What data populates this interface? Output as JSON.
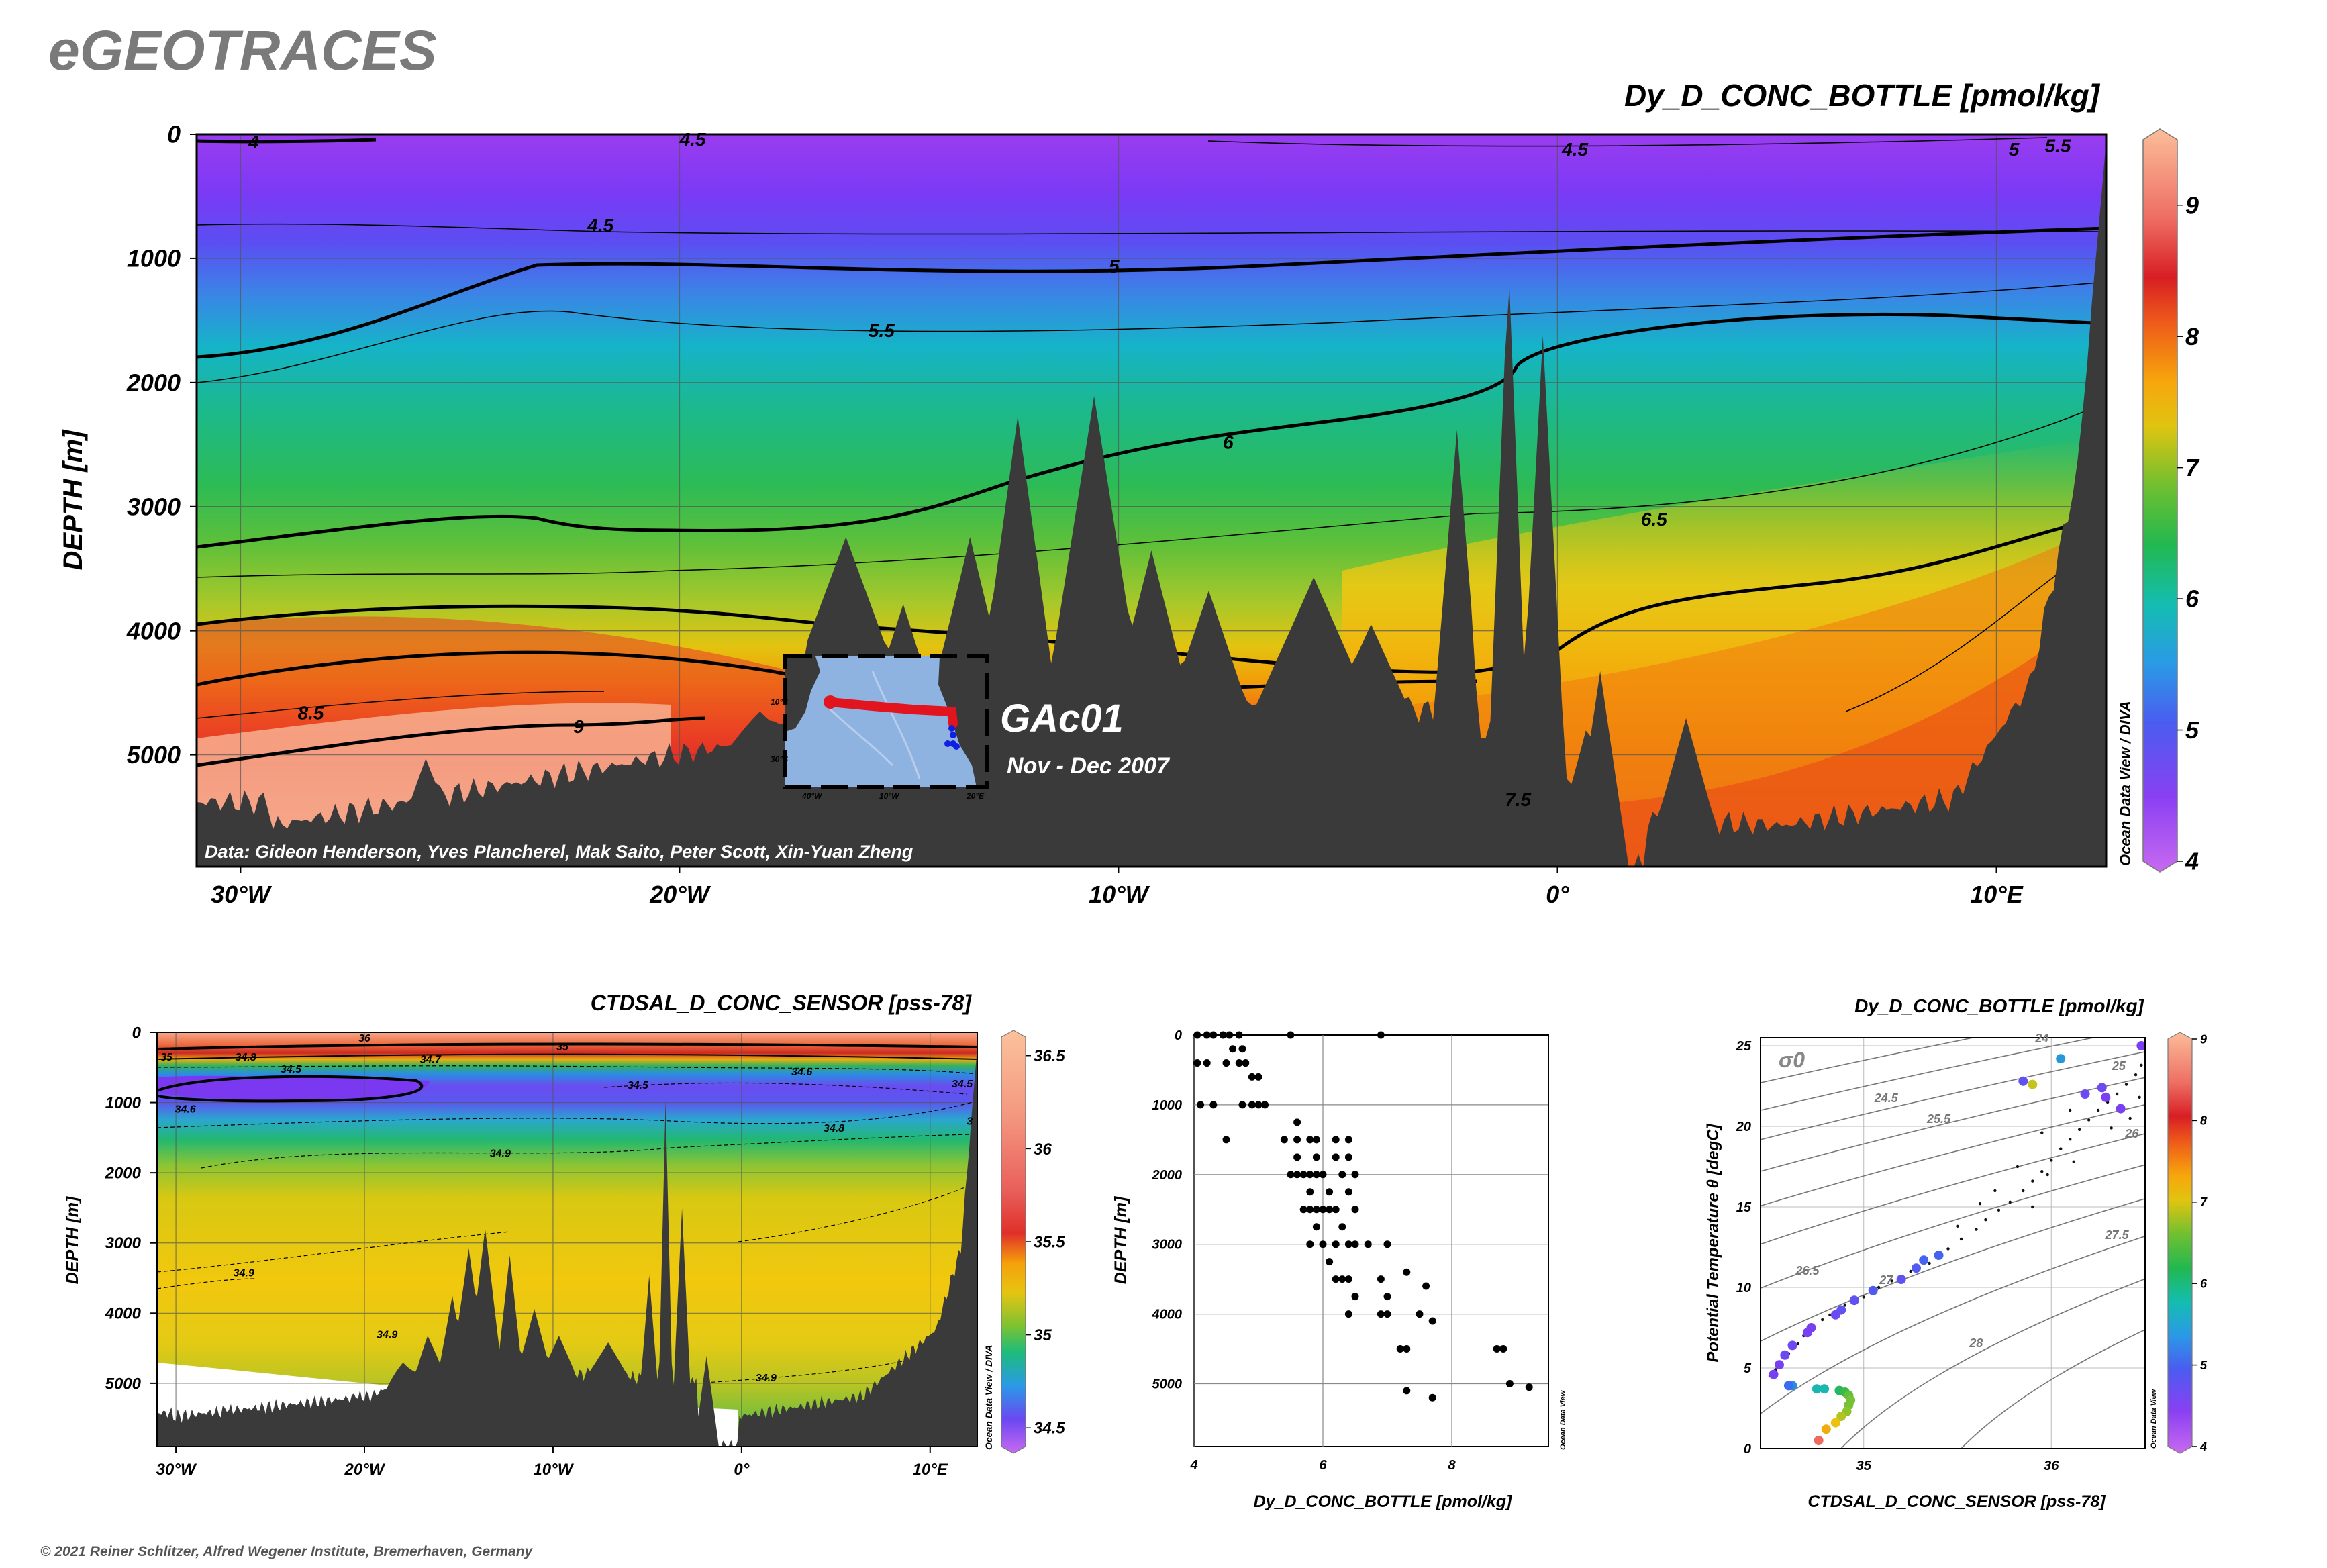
{
  "header": {
    "brand": "eGEOTRACES",
    "copyright": "© 2021 Reiner Schlitzer, Alfred Wegener Institute, Bremerhaven, Germany"
  },
  "colors": {
    "land": "#3a3a3a",
    "frame": "#000000",
    "brand_gray": "#7a7a7a"
  },
  "chart_data": [
    {
      "id": "main-section",
      "type": "heatmap",
      "title": "Dy_D_CONC_BOTTLE [pmol/kg]",
      "ylabel": "DEPTH [m]",
      "xlim": [
        -31,
        12.5
      ],
      "ylim": [
        5900,
        0
      ],
      "xticks": [
        {
          "v": -30,
          "label": "30°W"
        },
        {
          "v": -20,
          "label": "20°W"
        },
        {
          "v": -10,
          "label": "10°W"
        },
        {
          "v": 0,
          "label": "0°"
        },
        {
          "v": 10,
          "label": "10°E"
        }
      ],
      "yticks": [
        {
          "v": 0,
          "label": "0"
        },
        {
          "v": 1000,
          "label": "1000"
        },
        {
          "v": 2000,
          "label": "2000"
        },
        {
          "v": 3000,
          "label": "3000"
        },
        {
          "v": 4000,
          "label": "4000"
        },
        {
          "v": 5000,
          "label": "5000"
        }
      ],
      "colorbar": {
        "range": [
          4,
          9.5
        ],
        "ticks": [
          4,
          5,
          6,
          7,
          8,
          9
        ],
        "labels": [
          "4",
          "5",
          "6",
          "7",
          "8",
          "9"
        ],
        "credit": "Ocean Data View / DIVA"
      },
      "contour_labels": [
        {
          "text": "4",
          "x": -29.7,
          "y": 60
        },
        {
          "text": "4.5",
          "x": -19.7,
          "y": 40
        },
        {
          "text": "4.5",
          "x": -21.8,
          "y": 730
        },
        {
          "text": "4.5",
          "x": 0.4,
          "y": 120
        },
        {
          "text": "5",
          "x": 10.4,
          "y": 120
        },
        {
          "text": "5.5",
          "x": 11.4,
          "y": 90
        },
        {
          "text": "5",
          "x": -10.1,
          "y": 1060
        },
        {
          "text": "5.5",
          "x": -15.4,
          "y": 1580
        },
        {
          "text": "6",
          "x": -7.5,
          "y": 2480
        },
        {
          "text": "6.5",
          "x": 2.2,
          "y": 3100
        },
        {
          "text": "8.5",
          "x": -28.4,
          "y": 4660
        },
        {
          "text": "9",
          "x": -22.3,
          "y": 4770
        },
        {
          "text": "7.5",
          "x": -0.9,
          "y": 5360
        }
      ],
      "credit": "Data: Gideon Henderson, Yves Plancherel, Mak Saito, Peter Scott, Xin-Yuan Zheng",
      "inset": {
        "title": "GAc01",
        "subtitle": "Nov - Dec 2007",
        "lat_labels": [
          "10°S",
          "30°S"
        ],
        "lon_labels": [
          "40°W",
          "10°W",
          "20°E"
        ]
      }
    },
    {
      "id": "salinity-section",
      "type": "heatmap",
      "title": "CTDSAL_D_CONC_SENSOR [pss-78]",
      "ylabel": "DEPTH [m]",
      "xlim": [
        -31,
        12.5
      ],
      "ylim": [
        5900,
        0
      ],
      "xticks": [
        {
          "v": -30,
          "label": "30°W"
        },
        {
          "v": -20,
          "label": "20°W"
        },
        {
          "v": -10,
          "label": "10°W"
        },
        {
          "v": 0,
          "label": "0°"
        },
        {
          "v": 10,
          "label": "10°E"
        }
      ],
      "yticks": [
        {
          "v": 0,
          "label": "0"
        },
        {
          "v": 1000,
          "label": "1000"
        },
        {
          "v": 2000,
          "label": "2000"
        },
        {
          "v": 3000,
          "label": "3000"
        },
        {
          "v": 4000,
          "label": "4000"
        },
        {
          "v": 5000,
          "label": "5000"
        }
      ],
      "colorbar": {
        "range": [
          34.4,
          36.6
        ],
        "ticks": [
          34.5,
          35,
          35.5,
          36,
          36.5
        ],
        "labels": [
          "34.5",
          "35",
          "35.5",
          "36",
          "36.5"
        ],
        "credit": "Ocean Data View / DIVA"
      },
      "contour_labels": [
        {
          "text": "36",
          "x": -20,
          "y": 80
        },
        {
          "text": "35",
          "x": -30.5,
          "y": 350
        },
        {
          "text": "34.8",
          "x": -26.3,
          "y": 350
        },
        {
          "text": "34.7",
          "x": -16.5,
          "y": 380
        },
        {
          "text": "35",
          "x": -9.5,
          "y": 200
        },
        {
          "text": "34.5",
          "x": -23.9,
          "y": 520
        },
        {
          "text": "34.5",
          "x": -5.5,
          "y": 750
        },
        {
          "text": "34.6",
          "x": 3.2,
          "y": 560
        },
        {
          "text": "34.5",
          "x": 11.7,
          "y": 730
        },
        {
          "text": "34.6",
          "x": -29.5,
          "y": 1090
        },
        {
          "text": "34.8",
          "x": 4.9,
          "y": 1360
        },
        {
          "text": "34.9",
          "x": -12.8,
          "y": 1720
        },
        {
          "text": "34.9",
          "x": -26.4,
          "y": 3420
        },
        {
          "text": "34.9",
          "x": 1.3,
          "y": 4920
        },
        {
          "text": "34.9",
          "x": -18.8,
          "y": 4300
        },
        {
          "text": "3",
          "x": 12.1,
          "y": 1260
        }
      ]
    },
    {
      "id": "profile-scatter",
      "type": "scatter",
      "xlabel": "Dy_D_CONC_BOTTLE [pmol/kg]",
      "ylabel": "DEPTH [m]",
      "xlim": [
        4,
        9.5
      ],
      "ylim": [
        5900,
        0
      ],
      "xticks": [
        {
          "v": 4,
          "label": "4"
        },
        {
          "v": 6,
          "label": "6"
        },
        {
          "v": 8,
          "label": "8"
        }
      ],
      "yticks": [
        {
          "v": 0,
          "label": "0"
        },
        {
          "v": 1000,
          "label": "1000"
        },
        {
          "v": 2000,
          "label": "2000"
        },
        {
          "v": 3000,
          "label": "3000"
        },
        {
          "v": 4000,
          "label": "4000"
        },
        {
          "v": 5000,
          "label": "5000"
        }
      ],
      "credit": "Ocean Data View",
      "points": [
        [
          4.05,
          0
        ],
        [
          4.2,
          0
        ],
        [
          4.3,
          0
        ],
        [
          4.45,
          0
        ],
        [
          4.55,
          0
        ],
        [
          4.7,
          0
        ],
        [
          5.5,
          0
        ],
        [
          6.9,
          0
        ],
        [
          4.05,
          400
        ],
        [
          4.2,
          400
        ],
        [
          4.5,
          400
        ],
        [
          4.7,
          400
        ],
        [
          4.6,
          200
        ],
        [
          4.75,
          200
        ],
        [
          4.8,
          400
        ],
        [
          4.9,
          600
        ],
        [
          5.0,
          600
        ],
        [
          4.1,
          1000
        ],
        [
          4.3,
          1000
        ],
        [
          4.75,
          1000
        ],
        [
          4.9,
          1000
        ],
        [
          5.0,
          1000
        ],
        [
          5.1,
          1000
        ],
        [
          5.6,
          1250
        ],
        [
          4.5,
          1500
        ],
        [
          5.4,
          1500
        ],
        [
          5.6,
          1500
        ],
        [
          5.8,
          1500
        ],
        [
          5.9,
          1500
        ],
        [
          6.2,
          1500
        ],
        [
          6.4,
          1500
        ],
        [
          5.6,
          1750
        ],
        [
          5.9,
          1750
        ],
        [
          6.2,
          1750
        ],
        [
          6.4,
          1750
        ],
        [
          5.5,
          2000
        ],
        [
          5.6,
          2000
        ],
        [
          5.7,
          2000
        ],
        [
          5.8,
          2000
        ],
        [
          5.9,
          2000
        ],
        [
          6.0,
          2000
        ],
        [
          6.3,
          2000
        ],
        [
          6.5,
          2000
        ],
        [
          5.8,
          2250
        ],
        [
          6.1,
          2250
        ],
        [
          6.4,
          2250
        ],
        [
          5.7,
          2500
        ],
        [
          5.8,
          2500
        ],
        [
          5.9,
          2500
        ],
        [
          6.0,
          2500
        ],
        [
          6.1,
          2500
        ],
        [
          6.2,
          2500
        ],
        [
          6.5,
          2500
        ],
        [
          5.9,
          2750
        ],
        [
          6.3,
          2750
        ],
        [
          5.8,
          3000
        ],
        [
          6.0,
          3000
        ],
        [
          6.2,
          3000
        ],
        [
          6.4,
          3000
        ],
        [
          6.5,
          3000
        ],
        [
          6.7,
          3000
        ],
        [
          7.0,
          3000
        ],
        [
          6.1,
          3250
        ],
        [
          6.2,
          3500
        ],
        [
          6.3,
          3500
        ],
        [
          6.4,
          3500
        ],
        [
          6.9,
          3500
        ],
        [
          7.3,
          3400
        ],
        [
          7.6,
          3600
        ],
        [
          6.5,
          3750
        ],
        [
          7.0,
          3750
        ],
        [
          6.4,
          4000
        ],
        [
          6.9,
          4000
        ],
        [
          7.0,
          4000
        ],
        [
          7.5,
          4000
        ],
        [
          7.7,
          4100
        ],
        [
          7.2,
          4500
        ],
        [
          7.3,
          4500
        ],
        [
          8.7,
          4500
        ],
        [
          8.8,
          4500
        ],
        [
          8.9,
          5000
        ],
        [
          9.2,
          5050
        ],
        [
          7.3,
          5100
        ],
        [
          7.7,
          5200
        ]
      ]
    },
    {
      "id": "ts-scatter",
      "type": "scatter",
      "title": "Dy_D_CONC_BOTTLE [pmol/kg]",
      "xlabel": "CTDSAL_D_CONC_SENSOR [pss-78]",
      "ylabel": "Potential Temperature θ [degC]",
      "xlim": [
        34.45,
        36.5
      ],
      "ylim": [
        0,
        25.5
      ],
      "xticks": [
        {
          "v": 35,
          "label": "35"
        },
        {
          "v": 36,
          "label": "36"
        }
      ],
      "yticks": [
        {
          "v": 0,
          "label": "0"
        },
        {
          "v": 5,
          "label": "5"
        },
        {
          "v": 10,
          "label": "10"
        },
        {
          "v": 15,
          "label": "15"
        },
        {
          "v": 20,
          "label": "20"
        },
        {
          "v": 25,
          "label": "25"
        }
      ],
      "sigma_label": "σ0",
      "isopycnal_labels": [
        {
          "text": "24",
          "x": 35.95,
          "y": 25.2
        },
        {
          "text": "24.5",
          "x": 35.12,
          "y": 21.5
        },
        {
          "text": "25",
          "x": 36.36,
          "y": 23.5
        },
        {
          "text": "25.5",
          "x": 35.4,
          "y": 20.2
        },
        {
          "text": "26",
          "x": 36.43,
          "y": 19.3
        },
        {
          "text": "26.5",
          "x": 34.7,
          "y": 10.8
        },
        {
          "text": "27",
          "x": 35.12,
          "y": 10.2
        },
        {
          "text": "27.5",
          "x": 36.35,
          "y": 13.0
        },
        {
          "text": "28",
          "x": 35.6,
          "y": 6.3
        }
      ],
      "colorbar": {
        "range": [
          4,
          9
        ],
        "ticks": [
          4,
          5,
          6,
          7,
          8,
          9
        ],
        "labels": [
          "4",
          "5",
          "6",
          "7",
          "8",
          "9"
        ],
        "credit": "Ocean Data View"
      },
      "points": [
        [
          34.52,
          4.6,
          4.5
        ],
        [
          34.55,
          5.2,
          4.5
        ],
        [
          34.58,
          5.8,
          4.6
        ],
        [
          34.62,
          6.4,
          4.6
        ],
        [
          34.7,
          7.2,
          4.5
        ],
        [
          34.72,
          7.5,
          4.5
        ],
        [
          34.85,
          8.3,
          4.6
        ],
        [
          34.88,
          8.6,
          4.7
        ],
        [
          34.95,
          9.2,
          4.7
        ],
        [
          35.05,
          9.8,
          4.8
        ],
        [
          35.2,
          10.5,
          4.7
        ],
        [
          35.28,
          11.2,
          4.8
        ],
        [
          35.4,
          12.0,
          4.9
        ],
        [
          35.32,
          11.7,
          4.9
        ],
        [
          35.85,
          22.8,
          4.7
        ],
        [
          35.9,
          22.6,
          6.8
        ],
        [
          36.05,
          24.2,
          5.3
        ],
        [
          36.27,
          22.4,
          4.6
        ],
        [
          36.18,
          22.0,
          4.6
        ],
        [
          36.37,
          21.1,
          4.5
        ],
        [
          36.48,
          25.0,
          4.5
        ],
        [
          36.29,
          21.8,
          4.5
        ],
        [
          34.62,
          3.9,
          5.2
        ],
        [
          34.6,
          3.9,
          5.0
        ],
        [
          34.75,
          3.7,
          5.6
        ],
        [
          34.79,
          3.7,
          5.6
        ],
        [
          34.87,
          3.6,
          5.9
        ],
        [
          34.9,
          3.5,
          6.1
        ],
        [
          34.92,
          3.3,
          6.3
        ],
        [
          34.93,
          3.0,
          6.4
        ],
        [
          34.92,
          2.7,
          6.4
        ],
        [
          34.91,
          2.3,
          6.5
        ],
        [
          34.88,
          2.0,
          6.7
        ],
        [
          34.85,
          1.6,
          7.0
        ],
        [
          34.8,
          1.2,
          7.2
        ],
        [
          34.76,
          0.5,
          8.6
        ]
      ],
      "small_points": [
        [
          34.5,
          4.5
        ],
        [
          34.53,
          4.9
        ],
        [
          34.56,
          5.3
        ],
        [
          34.6,
          5.9
        ],
        [
          34.65,
          6.5
        ],
        [
          34.68,
          7.0
        ],
        [
          34.73,
          7.6
        ],
        [
          34.78,
          8.0
        ],
        [
          34.82,
          8.3
        ],
        [
          34.9,
          8.9
        ],
        [
          35.0,
          9.4
        ],
        [
          35.08,
          10.0
        ],
        [
          35.15,
          10.4
        ],
        [
          35.25,
          11.0
        ],
        [
          35.35,
          11.5
        ],
        [
          35.45,
          12.4
        ],
        [
          35.52,
          13.0
        ],
        [
          35.6,
          13.6
        ],
        [
          35.65,
          14.2
        ],
        [
          35.72,
          14.8
        ],
        [
          35.78,
          15.3
        ],
        [
          35.85,
          16.0
        ],
        [
          35.9,
          16.6
        ],
        [
          35.95,
          17.2
        ],
        [
          36.0,
          17.9
        ],
        [
          36.05,
          18.6
        ],
        [
          36.1,
          19.2
        ],
        [
          36.15,
          19.8
        ],
        [
          36.2,
          20.4
        ],
        [
          36.25,
          21.0
        ],
        [
          36.3,
          21.5
        ],
        [
          36.35,
          22.0
        ],
        [
          36.4,
          22.6
        ],
        [
          36.45,
          23.2
        ],
        [
          36.48,
          23.8
        ],
        [
          35.7,
          16.0
        ],
        [
          35.82,
          17.5
        ],
        [
          35.95,
          19.6
        ],
        [
          36.1,
          21.0
        ],
        [
          35.62,
          15.2
        ],
        [
          35.9,
          15.0
        ],
        [
          35.5,
          13.8
        ],
        [
          35.98,
          17.0
        ],
        [
          36.12,
          17.8
        ],
        [
          36.32,
          19.9
        ],
        [
          36.42,
          20.5
        ],
        [
          36.47,
          21.8
        ]
      ]
    }
  ]
}
